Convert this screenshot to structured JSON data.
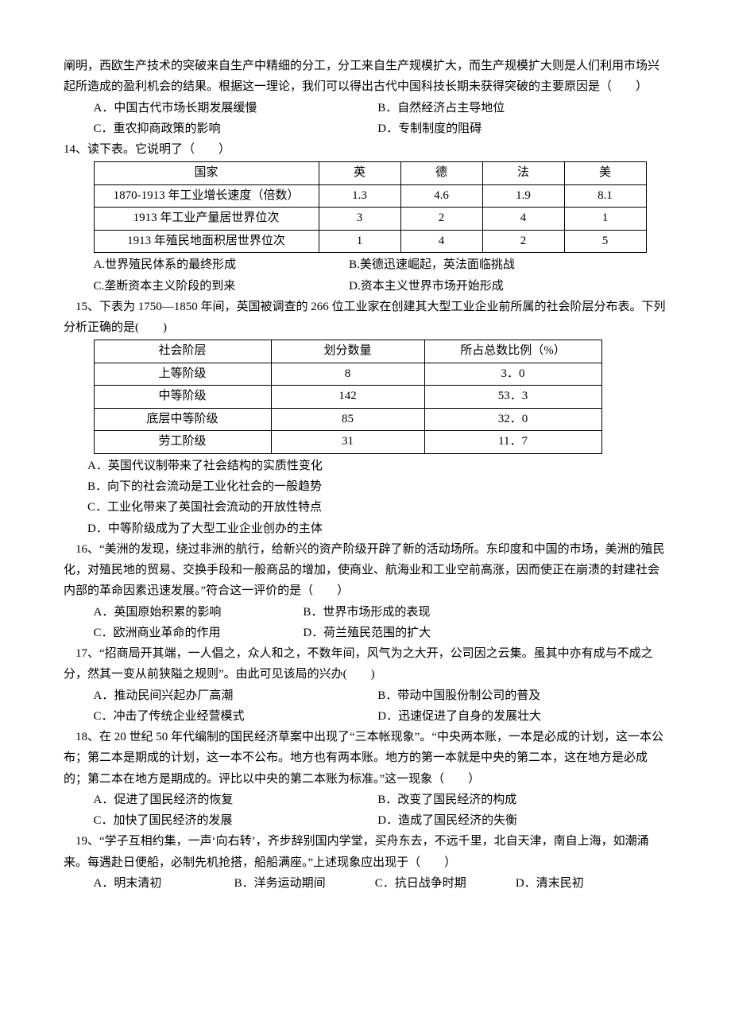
{
  "intro_lines": [
    "阐明，西欧生产技术的突破来自生产中精细的分工，分工来自生产规模扩大，而生产规模扩大则是人们利用市场兴起所造成的盈利机会的结果。根据这一理论，我们可以得出古代中国科技长期未获得突破的主要原因是（　　）"
  ],
  "q13_opts": {
    "A": "A．中国古代市场长期发展缓慢",
    "B": "B．自然经济占主导地位",
    "C": "C．重农抑商政策的影响",
    "D": "D．专制制度的阻碍"
  },
  "q14_stem": "14、读下表。它说明了（　　）",
  "t14": {
    "widths": [
      270,
      90,
      90,
      90,
      90
    ],
    "header": [
      "国家",
      "英",
      "德",
      "法",
      "美"
    ],
    "rows": [
      [
        "1870-1913 年工业增长速度（倍数）",
        "1.3",
        "4.6",
        "1.9",
        "8.1"
      ],
      [
        "1913 年工业产量居世界位次",
        "3",
        "2",
        "4",
        "1"
      ],
      [
        "1913 年殖民地面积居世界位次",
        "1",
        "4",
        "2",
        "5"
      ]
    ]
  },
  "q14_opts": {
    "A": "A.世界殖民体系的最终形成",
    "B": "B.美德迅速崛起，英法面临挑战",
    "C": "C.垄断资本主义阶段的到来",
    "D": "D.资本主义世界市场开始形成"
  },
  "q15_stem": "15、下表为 1750—1850 年间，英国被调查的 266 位工业家在创建其大型工业企业前所属的社会阶层分布表。下列分析正确的是(　　)",
  "t15": {
    "widths": [
      210,
      180,
      210
    ],
    "header": [
      "社会阶层",
      "划分数量",
      "所占总数比例（%）"
    ],
    "rows": [
      [
        "上等阶级",
        "8",
        "3．0"
      ],
      [
        "中等阶级",
        "142",
        "53．3"
      ],
      [
        "底层中等阶级",
        "85",
        "32．0"
      ],
      [
        "劳工阶级",
        "31",
        "11．7"
      ]
    ]
  },
  "q15_opts": {
    "A": "A．英国代议制带来了社会结构的实质性变化",
    "B": "B．向下的社会流动是工业化社会的一般趋势",
    "C": "C．工业化带来了英国社会流动的开放性特点",
    "D": "D．中等阶级成为了大型工业企业创办的主体"
  },
  "q16_stem": "16、“美洲的发现，绕过非洲的航行，给新兴的资产阶级开辟了新的活动场所。东印度和中国的市场，美洲的殖民化，对殖民地的贸易、交换手段和一般商品的增加，使商业、航海业和工业空前高涨，因而使正在崩溃的封建社会内部的革命因素迅速发展。”符合这一评价的是（　　）",
  "q16_opts": {
    "A": "A．英国原始积累的影响",
    "B": "B．世界市场形成的表现",
    "C": "C．欧洲商业革命的作用",
    "D": "D．荷兰殖民范围的扩大"
  },
  "q17_stem": "17、“招商局开其端，一人倡之，众人和之，不数年间，风气为之大开，公司因之云集。虽其中亦有成与不成之分，然其一变从前狭隘之规则”。由此可见该局的兴办(　　)",
  "q17_opts": {
    "A": "A．推动民间兴起办厂高潮",
    "B": "B．带动中国股份制公司的普及",
    "C": "C．冲击了传统企业经营模式",
    "D": "D．迅速促进了自身的发展壮大"
  },
  "q18_stem": "18、在 20 世纪 50 年代编制的国民经济草案中出现了“三本帐现象”。“中央两本账，一本是必成的计划，这一本公布；第二本是期成的计划，这一本不公布。地方也有两本账。地方的第一本就是中央的第二本，这在地方是必成的；第二本在地方是期成的。评比以中央的第二本账为标准。”这一现象（　　）",
  "q18_opts": {
    "A": "A．促进了国民经济的恢复",
    "B": "B．改变了国民经济的构成",
    "C": "C．加快了国民经济的发展",
    "D": "D．造成了国民经济的失衡"
  },
  "q19_stem": "19、“学子互相约集，一声‘向右转’，齐步辞别国内学堂，买舟东去，不远千里，北自天津，南自上海，如潮涌来。每遇赴日便船，必制先机抢搭，船船满座。”上述现象应出现于（　　）",
  "q19_opts": {
    "A": "A．明末清初",
    "B": "B．洋务运动期间",
    "C": "C．抗日战争时期",
    "D": "D．清末民初"
  }
}
